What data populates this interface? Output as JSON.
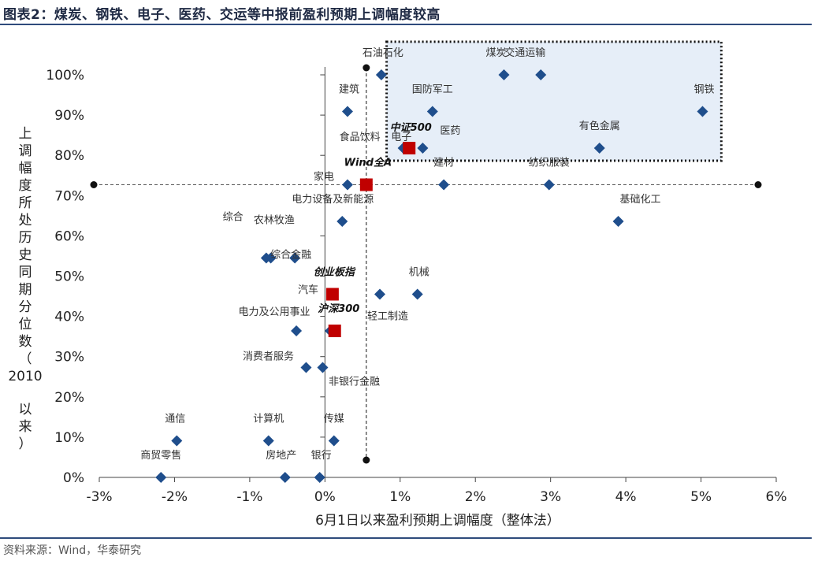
{
  "title": "图表2：煤炭、钢铁、电子、医药、交运等中报前盈利预期上调幅度较高",
  "source": "资料来源：Wind，华泰研究",
  "chart_data": {
    "type": "scatter",
    "xlabel": "6月1日以来盈利预期上调幅度（整体法）",
    "ylabel": "上调幅度所处历史同期分位数（2010以来）",
    "xlim": [
      -0.03,
      0.06
    ],
    "ylim": [
      0,
      1.05
    ],
    "x_ticks": [
      -0.03,
      -0.02,
      -0.01,
      0,
      0.01,
      0.02,
      0.03,
      0.04,
      0.05,
      0.06
    ],
    "x_tick_labels": [
      "-3%",
      "-2%",
      "-1%",
      "0%",
      "1%",
      "2%",
      "3%",
      "4%",
      "5%",
      "6%"
    ],
    "y_ticks": [
      0,
      0.1,
      0.2,
      0.3,
      0.4,
      0.5,
      0.6,
      0.7,
      0.8,
      0.9,
      1.0
    ],
    "y_tick_labels": [
      "0%",
      "10%",
      "20%",
      "30%",
      "40%",
      "50%",
      "60%",
      "70%",
      "80%",
      "90%",
      "100%"
    ],
    "industries": [
      {
        "name": "石油石化",
        "x": 0.0075,
        "y": 1.0,
        "color": "#1f4e8c"
      },
      {
        "name": "煤炭",
        "x": 0.0238,
        "y": 1.0,
        "color": "#1f4e8c"
      },
      {
        "name": "交通运输",
        "x": 0.0287,
        "y": 1.0,
        "color": "#1f4e8c"
      },
      {
        "name": "钢铁",
        "x": 0.0502,
        "y": 0.909,
        "color": "#1f4e8c"
      },
      {
        "name": "建筑",
        "x": 0.003,
        "y": 0.909,
        "color": "#1f4e8c"
      },
      {
        "name": "国防军工",
        "x": 0.0143,
        "y": 0.909,
        "color": "#1f4e8c"
      },
      {
        "name": "电子",
        "x": 0.0112,
        "y": 0.818,
        "color": "#1f4e8c"
      },
      {
        "name": "医药",
        "x": 0.013,
        "y": 0.818,
        "color": "#1f4e8c"
      },
      {
        "name": "食品饮料",
        "x": 0.0104,
        "y": 0.818,
        "color": "#1f4e8c"
      },
      {
        "name": "有色金属",
        "x": 0.0365,
        "y": 0.818,
        "color": "#1f4e8c"
      },
      {
        "name": "家电",
        "x": 0.003,
        "y": 0.727,
        "color": "#1f4e8c"
      },
      {
        "name": "建材",
        "x": 0.0158,
        "y": 0.727,
        "color": "#1f4e8c"
      },
      {
        "name": "纺织服装",
        "x": 0.0298,
        "y": 0.727,
        "color": "#1f4e8c"
      },
      {
        "name": "电力设备及新能源",
        "x": 0.0023,
        "y": 0.636,
        "color": "#1f4e8c"
      },
      {
        "name": "基础化工",
        "x": 0.039,
        "y": 0.636,
        "color": "#1f4e8c"
      },
      {
        "name": "综合",
        "x": -0.0072,
        "y": 0.545,
        "color": "#1f4e8c"
      },
      {
        "name": "综合金融",
        "x": -0.004,
        "y": 0.545,
        "color": "#1f4e8c"
      },
      {
        "name": "农林牧渔",
        "x": -0.0078,
        "y": 0.545,
        "color": "#1f4e8c"
      },
      {
        "name": "机械",
        "x": 0.0123,
        "y": 0.455,
        "color": "#1f4e8c"
      },
      {
        "name": "轻工制造",
        "x": 0.0073,
        "y": 0.455,
        "color": "#1f4e8c"
      },
      {
        "name": "汽车",
        "x": 0.0007,
        "y": 0.364,
        "color": "#1f4e8c"
      },
      {
        "name": "电力及公用事业",
        "x": -0.0038,
        "y": 0.364,
        "color": "#1f4e8c"
      },
      {
        "name": "非银行金融",
        "x": -0.0003,
        "y": 0.273,
        "color": "#1f4e8c"
      },
      {
        "name": "消费者服务",
        "x": -0.0025,
        "y": 0.273,
        "color": "#1f4e8c"
      },
      {
        "name": "通信",
        "x": -0.0197,
        "y": 0.091,
        "color": "#1f4e8c"
      },
      {
        "name": "计算机",
        "x": -0.0075,
        "y": 0.091,
        "color": "#1f4e8c"
      },
      {
        "name": "传媒",
        "x": 0.0012,
        "y": 0.091,
        "color": "#1f4e8c"
      },
      {
        "name": "商贸零售",
        "x": -0.0218,
        "y": 0.0,
        "color": "#1f4e8c"
      },
      {
        "name": "房地产",
        "x": -0.0053,
        "y": 0.0,
        "color": "#1f4e8c"
      },
      {
        "name": "银行",
        "x": -0.0007,
        "y": 0.0,
        "color": "#1f4e8c"
      }
    ],
    "indices": [
      {
        "name": "Wind全A",
        "x": 0.0055,
        "y": 0.727,
        "color": "#c00000"
      },
      {
        "name": "中证500",
        "x": 0.0112,
        "y": 0.818,
        "color": "#c00000"
      },
      {
        "name": "创业板指",
        "x": 0.001,
        "y": 0.455,
        "color": "#c00000"
      },
      {
        "name": "沪深300",
        "x": 0.0013,
        "y": 0.364,
        "color": "#c00000"
      }
    ],
    "reference_lines": {
      "x": 0.0055,
      "y": 0.727
    },
    "highlight_box": {
      "x": [
        0.0082,
        0.0527
      ],
      "y": [
        0.79,
        1.1
      ]
    }
  }
}
